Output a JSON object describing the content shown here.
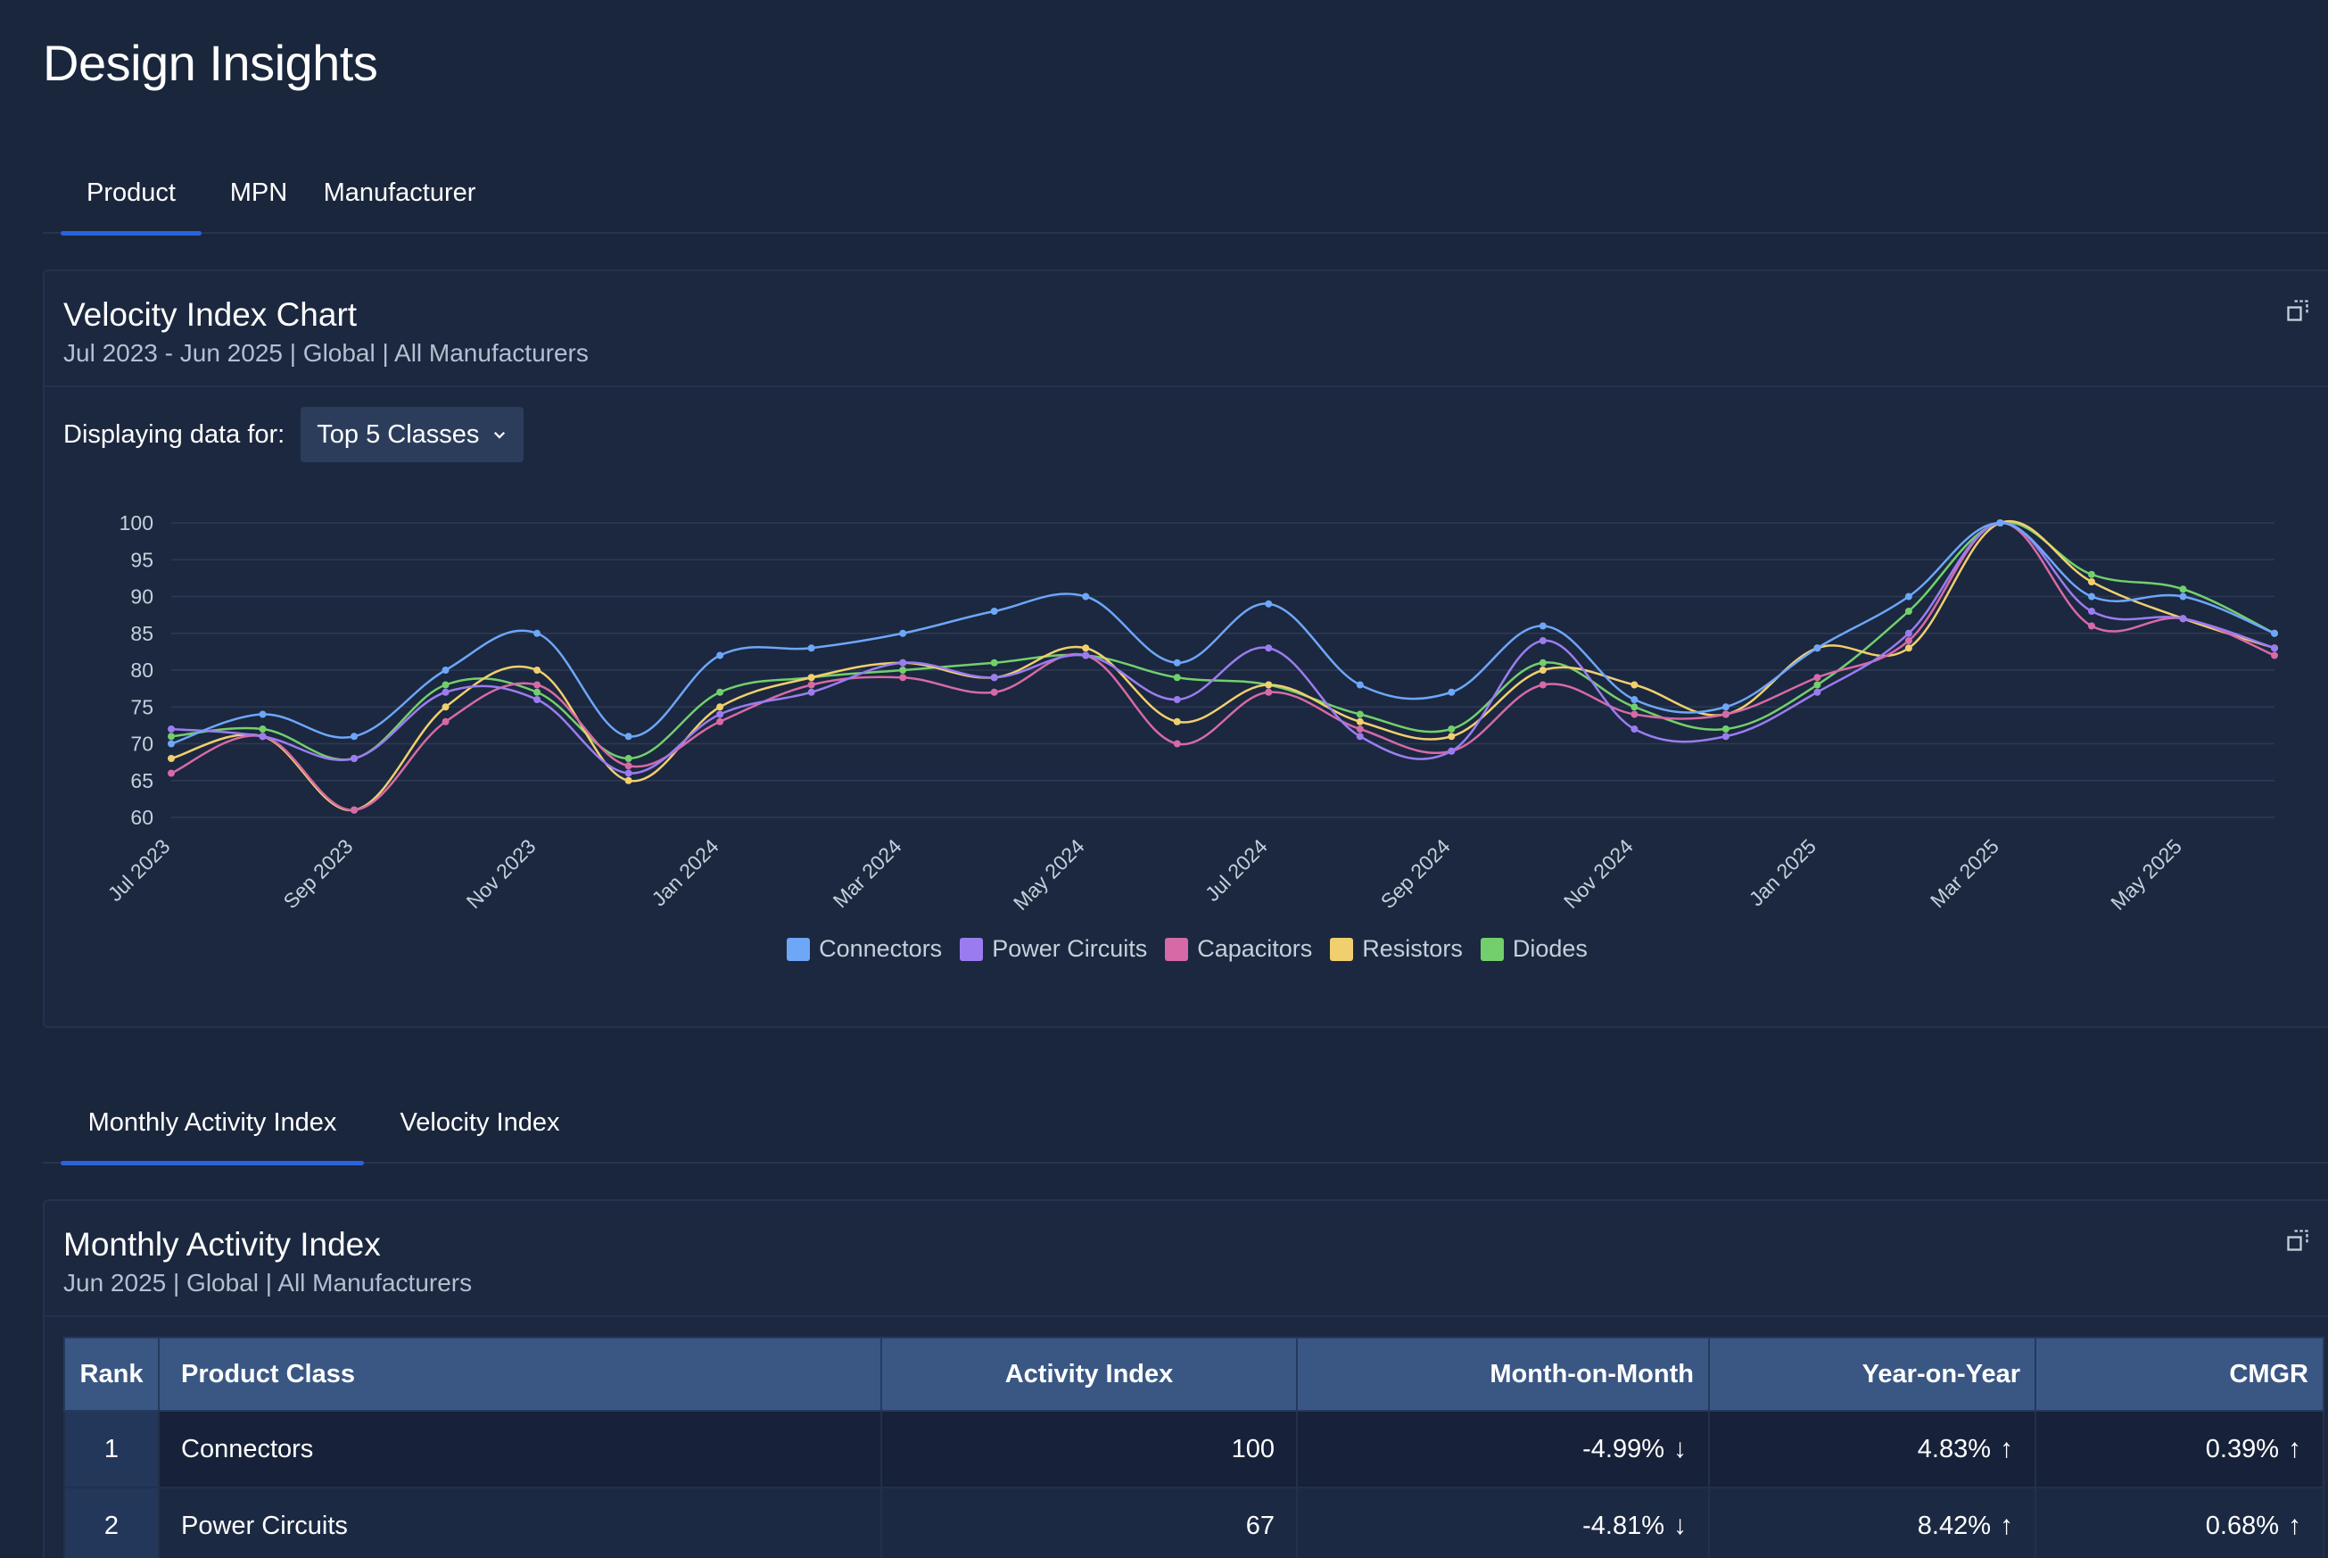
{
  "page": {
    "title": "Design Insights"
  },
  "tabs_top": [
    {
      "label": "Product",
      "active": true
    },
    {
      "label": "MPN",
      "active": false
    },
    {
      "label": "Manufacturer",
      "active": false
    }
  ],
  "chart_card": {
    "title": "Velocity Index Chart",
    "subtitle": "Jul 2023 - Jun 2025 | Global | All Manufacturers",
    "expand_icon": "expand-icon",
    "filter_label": "Displaying data for:",
    "filter_value": "Top 5 Classes"
  },
  "chart_data": {
    "type": "line",
    "title": "Velocity Index Chart",
    "xlabel": "",
    "ylabel": "",
    "ylim": [
      60,
      100
    ],
    "yticks": [
      60,
      65,
      70,
      75,
      80,
      85,
      90,
      95,
      100
    ],
    "grid": true,
    "legend_position": "bottom-center",
    "x": [
      "Jul 2023",
      "Aug 2023",
      "Sep 2023",
      "Oct 2023",
      "Nov 2023",
      "Dec 2023",
      "Jan 2024",
      "Feb 2024",
      "Mar 2024",
      "Apr 2024",
      "May 2024",
      "Jun 2024",
      "Jul 2024",
      "Aug 2024",
      "Sep 2024",
      "Oct 2024",
      "Nov 2024",
      "Dec 2024",
      "Jan 2025",
      "Feb 2025",
      "Mar 2025",
      "Apr 2025",
      "May 2025",
      "Jun 2025"
    ],
    "xtick_labels": [
      "Jul 2023",
      "Sep 2023",
      "Nov 2023",
      "Jan 2024",
      "Mar 2024",
      "May 2024",
      "Jul 2024",
      "Sep 2024",
      "Nov 2024",
      "Jan 2025",
      "Mar 2025",
      "May 2025"
    ],
    "series": [
      {
        "name": "Connectors",
        "color": "#6ea6f8",
        "values": [
          70,
          74,
          71,
          80,
          85,
          71,
          82,
          83,
          85,
          88,
          90,
          81,
          89,
          78,
          77,
          86,
          76,
          75,
          83,
          90,
          100,
          90,
          90,
          85
        ]
      },
      {
        "name": "Power Circuits",
        "color": "#9b7cf0",
        "values": [
          72,
          71,
          68,
          77,
          76,
          66,
          74,
          77,
          81,
          79,
          82,
          76,
          83,
          71,
          69,
          84,
          72,
          71,
          77,
          85,
          100,
          88,
          87,
          83
        ]
      },
      {
        "name": "Capacitors",
        "color": "#d66aa6",
        "values": [
          66,
          71,
          61,
          73,
          78,
          67,
          73,
          78,
          79,
          77,
          82,
          70,
          77,
          72,
          69,
          78,
          74,
          74,
          79,
          84,
          100,
          86,
          87,
          82
        ]
      },
      {
        "name": "Resistors",
        "color": "#f0cf6e",
        "values": [
          68,
          71,
          61,
          75,
          80,
          65,
          75,
          79,
          81,
          79,
          83,
          73,
          78,
          73,
          71,
          80,
          78,
          74,
          83,
          83,
          100,
          92,
          87,
          83
        ]
      },
      {
        "name": "Diodes",
        "color": "#73cf6c",
        "values": [
          71,
          72,
          68,
          78,
          77,
          68,
          77,
          79,
          80,
          81,
          82,
          79,
          78,
          74,
          72,
          81,
          75,
          72,
          78,
          88,
          100,
          93,
          91,
          85
        ]
      }
    ]
  },
  "tabs_bottom": [
    {
      "label": "Monthly Activity Index",
      "active": true
    },
    {
      "label": "Velocity Index",
      "active": false
    }
  ],
  "table_card": {
    "title": "Monthly Activity Index",
    "subtitle": "Jun 2025 | Global | All Manufacturers",
    "expand_icon": "expand-icon",
    "columns": [
      "Rank",
      "Product Class",
      "Activity Index",
      "Month-on-Month",
      "Year-on-Year",
      "CMGR"
    ],
    "rows": [
      {
        "rank": "1",
        "product_class": "Connectors",
        "activity_index": "100",
        "mom": "-4.99%",
        "mom_dir": "down",
        "yoy": "4.83%",
        "yoy_dir": "up",
        "cmgr": "0.39%",
        "cmgr_dir": "up"
      },
      {
        "rank": "2",
        "product_class": "Power Circuits",
        "activity_index": "67",
        "mom": "-4.81%",
        "mom_dir": "down",
        "yoy": "8.42%",
        "yoy_dir": "up",
        "cmgr": "0.68%",
        "cmgr_dir": "up"
      }
    ]
  }
}
